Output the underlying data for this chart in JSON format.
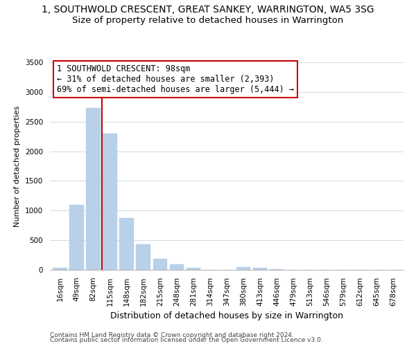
{
  "title": "1, SOUTHWOLD CRESCENT, GREAT SANKEY, WARRINGTON, WA5 3SG",
  "subtitle": "Size of property relative to detached houses in Warrington",
  "xlabel": "Distribution of detached houses by size in Warrington",
  "ylabel": "Number of detached properties",
  "bar_labels": [
    "16sqm",
    "49sqm",
    "82sqm",
    "115sqm",
    "148sqm",
    "182sqm",
    "215sqm",
    "248sqm",
    "281sqm",
    "314sqm",
    "347sqm",
    "380sqm",
    "413sqm",
    "446sqm",
    "479sqm",
    "513sqm",
    "546sqm",
    "579sqm",
    "612sqm",
    "645sqm",
    "678sqm"
  ],
  "bar_values": [
    40,
    1100,
    2730,
    2300,
    880,
    430,
    185,
    95,
    40,
    0,
    0,
    50,
    30,
    10,
    0,
    0,
    0,
    0,
    0,
    0,
    0
  ],
  "bar_color": "#b8d0e8",
  "bar_edge_color": "#b8d0e8",
  "vline_x_idx": 2,
  "vline_color": "#cc0000",
  "annotation_title": "1 SOUTHWOLD CRESCENT: 98sqm",
  "annotation_line1": "← 31% of detached houses are smaller (2,393)",
  "annotation_line2": "69% of semi-detached houses are larger (5,444) →",
  "annotation_box_color": "#ffffff",
  "annotation_box_edge": "#cc0000",
  "ylim": [
    0,
    3500
  ],
  "yticks": [
    0,
    500,
    1000,
    1500,
    2000,
    2500,
    3000,
    3500
  ],
  "footer1": "Contains HM Land Registry data © Crown copyright and database right 2024.",
  "footer2": "Contains public sector information licensed under the Open Government Licence v3.0.",
  "bg_color": "#ffffff",
  "grid_color": "#ccd8e5",
  "title_fontsize": 10,
  "subtitle_fontsize": 9.5,
  "xlabel_fontsize": 9,
  "ylabel_fontsize": 8,
  "tick_fontsize": 7.5,
  "footer_fontsize": 6.5
}
